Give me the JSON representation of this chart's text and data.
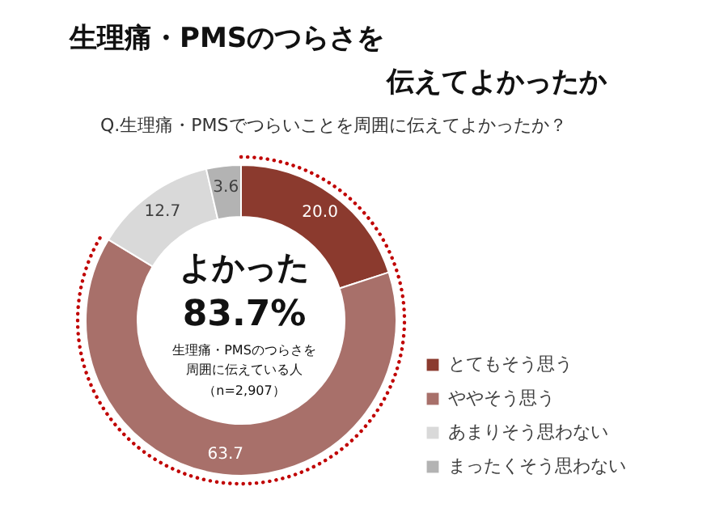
{
  "chart_data": {
    "type": "donut",
    "title": "生理痛・PMSのつらさを伝えてよかったか",
    "subtitle": "Q.生理痛・PMSでつらいことを周囲に伝えてよかったか？",
    "categories": [
      "とてもそう思う",
      "ややそう思う",
      "あまりそう思わない",
      "まったくそう思わない"
    ],
    "values": [
      20.0,
      63.7,
      12.7,
      3.6
    ],
    "colors": [
      "#8b3a2e",
      "#a8706a",
      "#d9d9d9",
      "#b3b3b3"
    ],
    "value_labels": [
      "20.0",
      "63.7",
      "12.7",
      "3.6"
    ],
    "legend": "right",
    "annotations": [
      "よかった",
      "83.7%",
      "生理痛・PMSのつらさを周囲に伝えている人",
      "（n=2,907）"
    ]
  }
}
